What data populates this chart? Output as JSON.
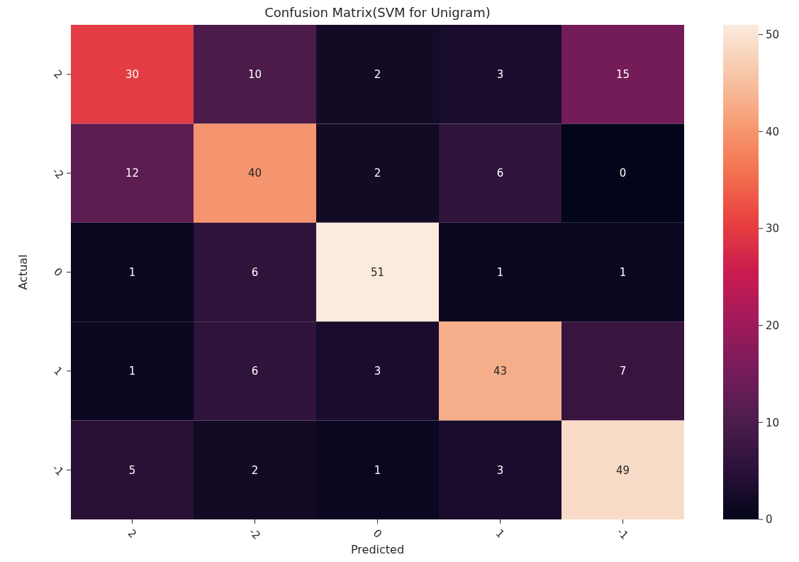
{
  "chart_data": {
    "type": "heatmap",
    "title": "Confusion Matrix(SVM for Unigram)",
    "xlabel": "Predicted",
    "ylabel": "Actual",
    "categories": [
      "2",
      "-2",
      "0",
      "1",
      "-1"
    ],
    "y_categories": [
      "2",
      "-2",
      "0",
      "1",
      "-1"
    ],
    "cells": [
      [
        30,
        10,
        2,
        3,
        15
      ],
      [
        12,
        40,
        2,
        6,
        0
      ],
      [
        1,
        6,
        51,
        1,
        1
      ],
      [
        1,
        6,
        3,
        43,
        7
      ],
      [
        5,
        2,
        1,
        3,
        49
      ]
    ],
    "data_labels": true,
    "clim": [
      0,
      51
    ],
    "cticks": [
      0,
      10,
      20,
      30,
      40,
      50
    ]
  }
}
